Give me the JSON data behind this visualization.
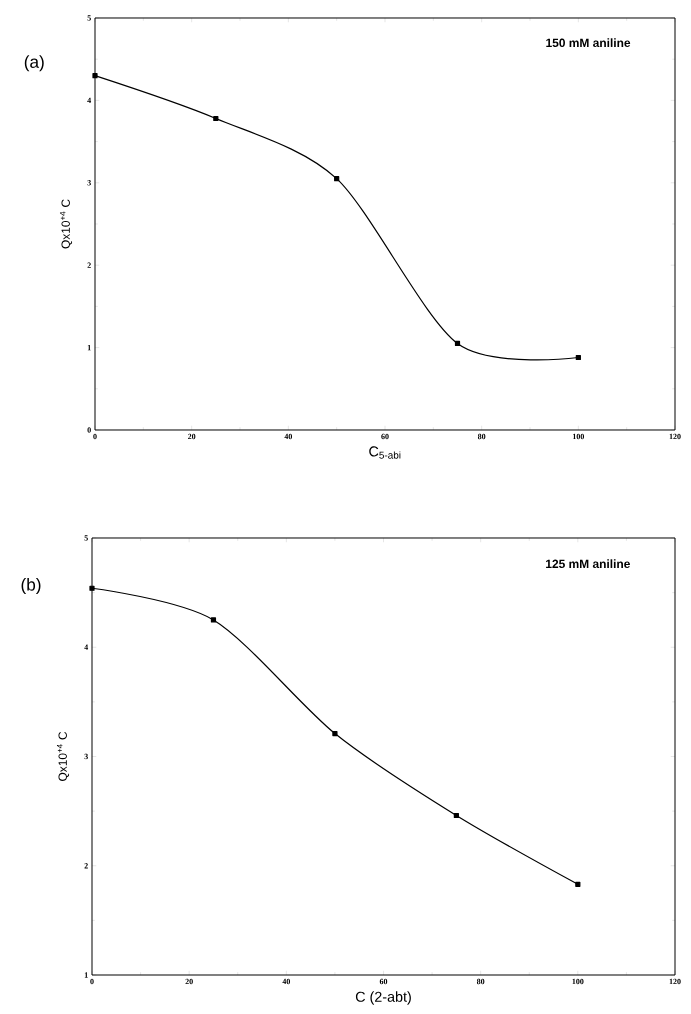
{
  "chart_data": [
    {
      "type": "line",
      "xlabel": "C$_{5-abi}$",
      "ylabel": "Qx10$^{+4}$ C",
      "annotations": [
        "(a)",
        "150 mM aniline"
      ],
      "x": [
        0,
        25,
        50,
        75,
        100
      ],
      "series": [
        {
          "color": "#000000",
          "values": [
            4.3,
            3.78,
            3.05,
            1.05,
            0.88
          ]
        }
      ],
      "xlim": [
        0,
        120
      ],
      "xticks": [
        0,
        20,
        40,
        60,
        80,
        100,
        120
      ],
      "ylim": [
        0,
        5
      ],
      "yticks": [
        0,
        1,
        2,
        3,
        4,
        5
      ],
      "marker": "square",
      "line_style": "solid"
    },
    {
      "type": "line",
      "xlabel": "C (2-abt)",
      "ylabel": "Qx10$^{+4}$ C",
      "annotations": [
        "(b)",
        "125 mM aniline"
      ],
      "x": [
        0,
        25,
        50,
        75,
        100
      ],
      "series": [
        {
          "color": "#000000",
          "values": [
            4.54,
            4.25,
            3.21,
            2.46,
            1.83
          ]
        }
      ],
      "xlim": [
        0,
        120
      ],
      "xticks": [
        0,
        20,
        40,
        60,
        80,
        100,
        120
      ],
      "ylim": [
        1,
        5
      ],
      "yticks": [
        1,
        2,
        3,
        4,
        5
      ],
      "marker": "square",
      "line_style": "solid"
    }
  ]
}
